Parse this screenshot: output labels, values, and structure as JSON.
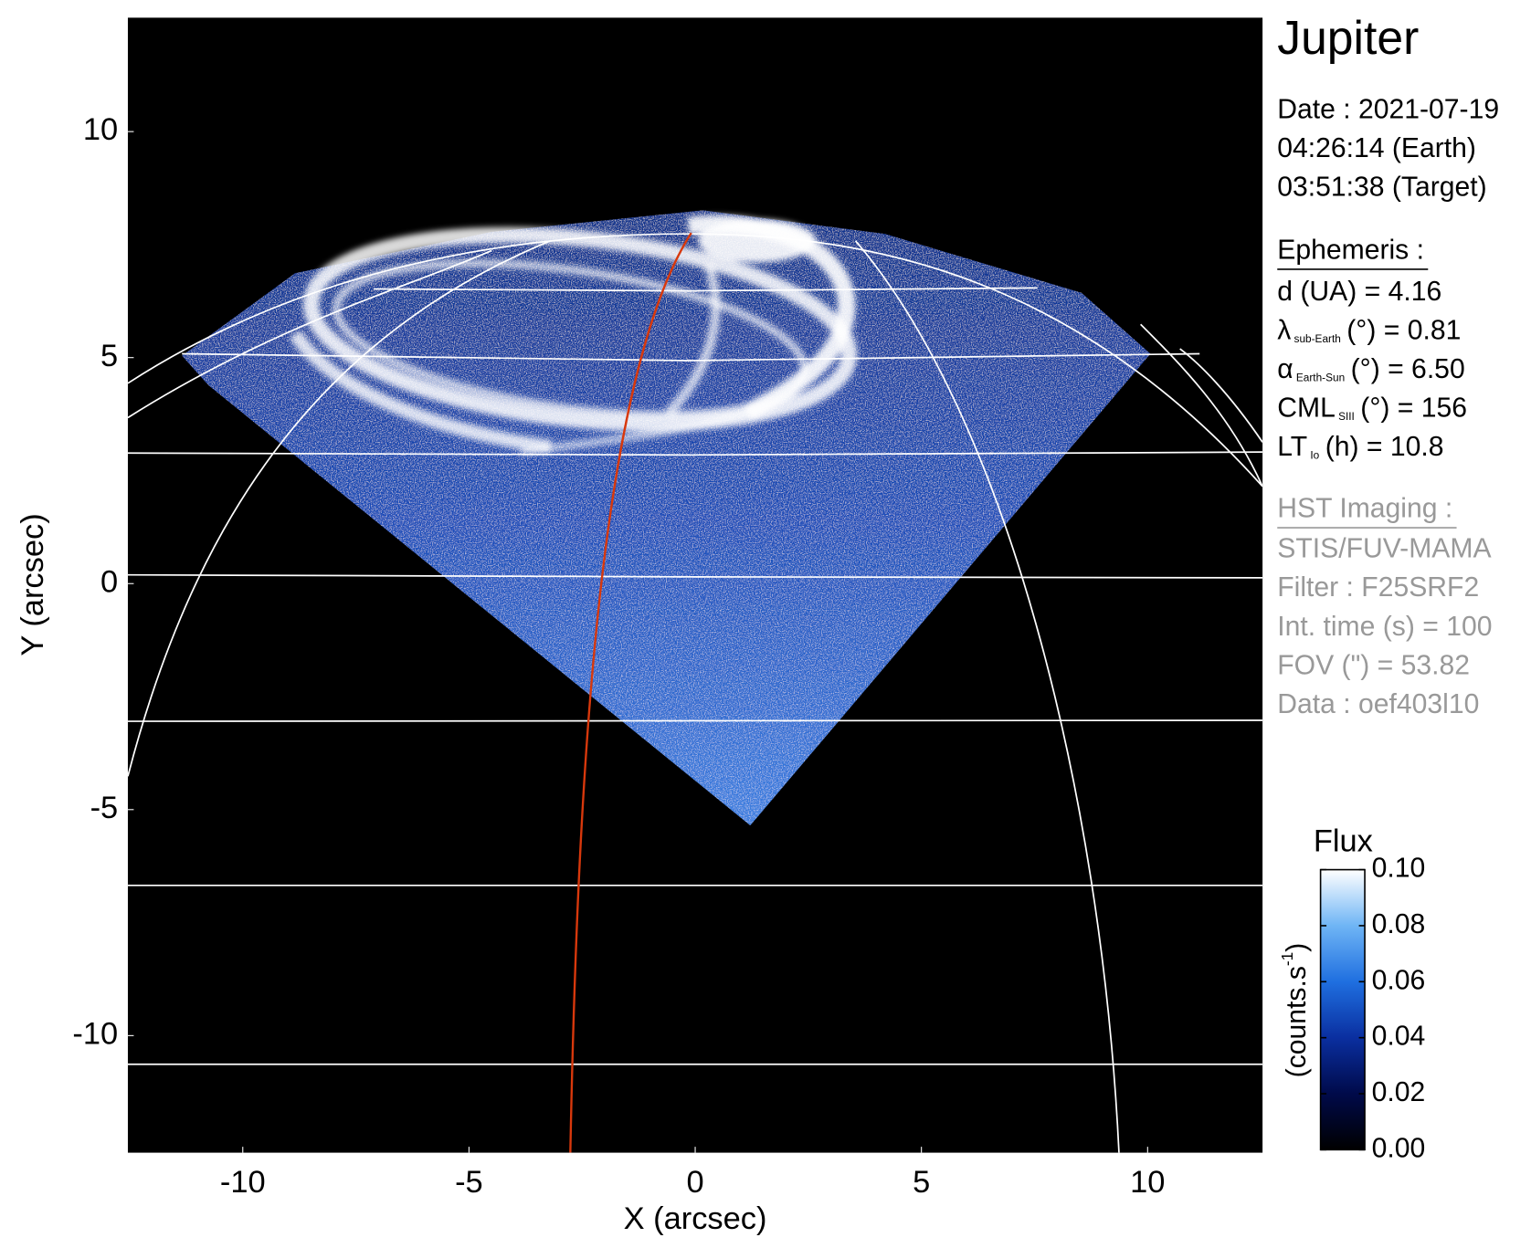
{
  "chart_data": {
    "type": "image",
    "title": "Jupiter",
    "xlabel": "X (arcsec)",
    "ylabel": "Y (arcsec)",
    "xlim": [
      -12.54,
      12.54
    ],
    "ylim": [
      -12.59,
      12.52
    ],
    "xticks": [
      -10,
      -5,
      0,
      5,
      10
    ],
    "yticks": [
      -10,
      -5,
      0,
      5,
      10
    ],
    "info": {
      "date": [
        "Date : 2021-07-19",
        "04:26:14 (Earth)",
        "03:51:38 (Target)"
      ],
      "ephemeris": {
        "heading": "Ephemeris :",
        "items": [
          {
            "symbol": "d (UA)    = 4.16"
          },
          {
            "symbol": "λ",
            "sub": "sub-Earth",
            "rest": "(°) = 0.81"
          },
          {
            "symbol": "α",
            "sub": "Earth-Sun",
            "rest": "(°) = 6.50"
          },
          {
            "symbol": "CML",
            "sub": "SIII",
            "rest": "(°) = 156"
          },
          {
            "symbol": "LT",
            "sub": "Io",
            "rest": "(h) = 10.8"
          }
        ]
      },
      "imaging": {
        "heading": "HST Imaging :",
        "lines": [
          "STIS/FUV-MAMA",
          "Filter : F25SRF2",
          "Int. time (s) = 100",
          "FOV (\") = 53.82",
          "Data : oef403l10"
        ]
      }
    },
    "colorbar": {
      "title": "Flux",
      "label": "(counts.s",
      "label_sup": "-1",
      "label_end": ")",
      "lim": [
        0,
        0.1
      ],
      "ticks": [
        {
          "value": 0,
          "label": "0.00"
        },
        {
          "value": 0.02,
          "label": "0.02"
        },
        {
          "value": 0.04,
          "label": "0.04"
        },
        {
          "value": 0.06,
          "label": "0.06"
        },
        {
          "value": 0.08,
          "label": "0.08"
        },
        {
          "value": 0.1,
          "label": "0.10"
        }
      ],
      "colors": [
        "#000000",
        "#000a4a",
        "#0a2fa0",
        "#1f6fe0",
        "#6fb5f5",
        "#ffffff"
      ]
    }
  }
}
